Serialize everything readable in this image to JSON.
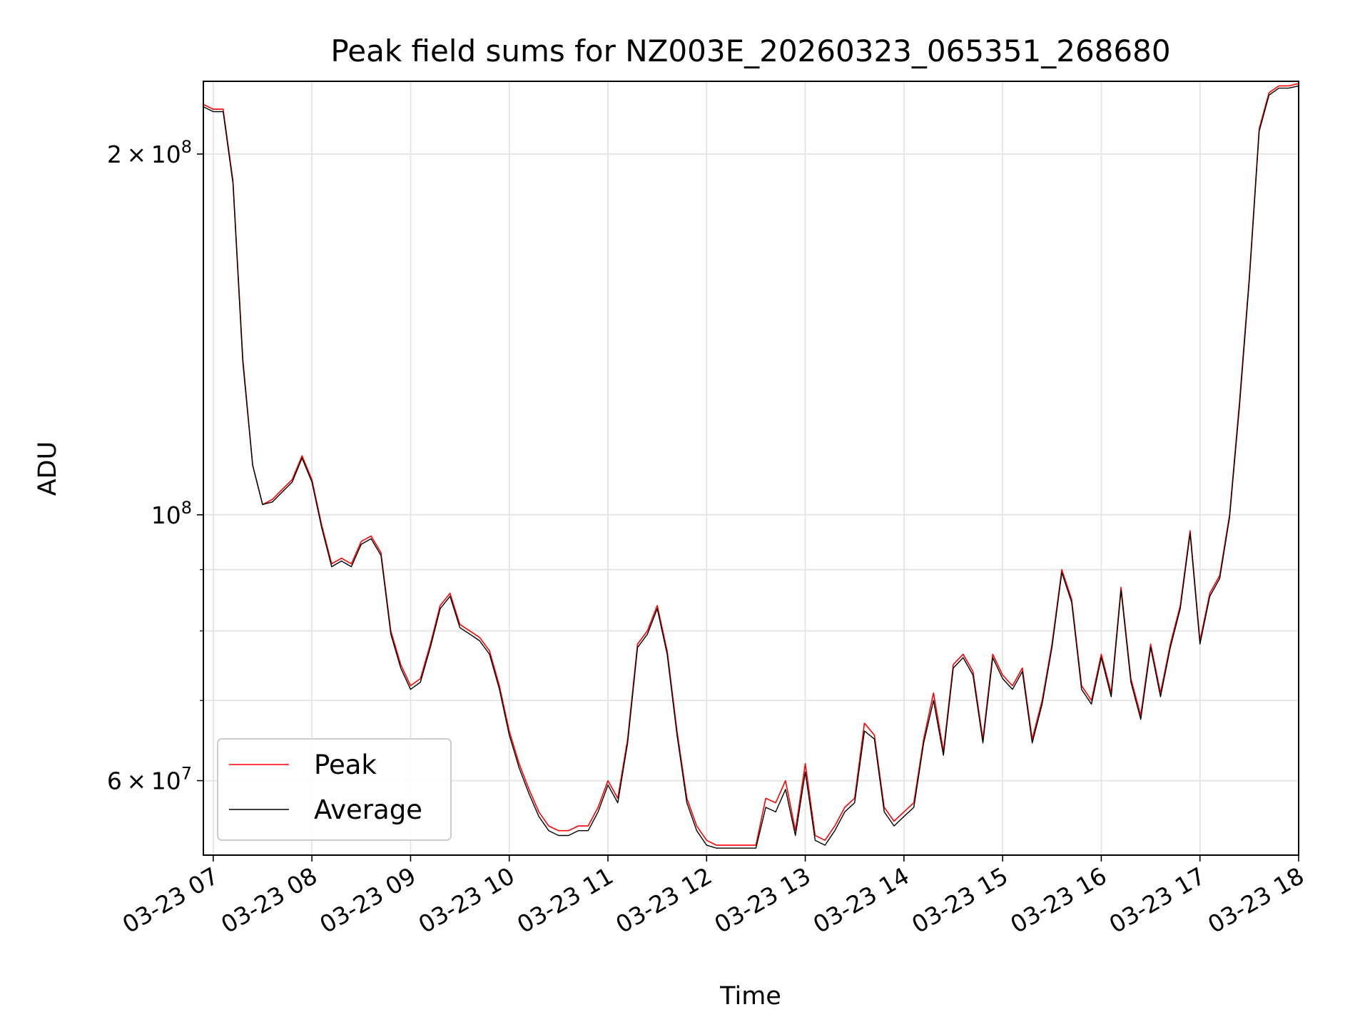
{
  "chart_data": {
    "type": "line",
    "title": "Peak field sums for NZ003E_20260323_065351_268680",
    "xlabel": "Time",
    "ylabel": "ADU",
    "y_scale": "log",
    "ylim": [
      52000000,
      230000000
    ],
    "xlim": [
      "2026-03-23 06:54",
      "2026-03-23 18:00"
    ],
    "x_tick_labels": [
      "03-23 07",
      "03-23 08",
      "03-23 09",
      "03-23 10",
      "03-23 11",
      "03-23 12",
      "03-23 13",
      "03-23 14",
      "03-23 15",
      "03-23 16",
      "03-23 17",
      "03-23 18"
    ],
    "y_major_ticks": [
      {
        "value": 60000000,
        "mantissa": "6",
        "exponent": "7"
      },
      {
        "value": 100000000,
        "mantissa": "",
        "exponent": "8"
      },
      {
        "value": 200000000,
        "mantissa": "2",
        "exponent": "8"
      }
    ],
    "y_minor_ticks": [
      70000000,
      80000000,
      90000000
    ],
    "grid": true,
    "legend_position": "lower-left",
    "series": [
      {
        "name": "Peak",
        "color": "#ff0000",
        "x": [
          "2026-03-23 06:54",
          "2026-03-23 07:00",
          "2026-03-23 07:06",
          "2026-03-23 07:12",
          "2026-03-23 07:18",
          "2026-03-23 07:24",
          "2026-03-23 07:30",
          "2026-03-23 07:36",
          "2026-03-23 07:42",
          "2026-03-23 07:48",
          "2026-03-23 07:54",
          "2026-03-23 08:00",
          "2026-03-23 08:06",
          "2026-03-23 08:12",
          "2026-03-23 08:18",
          "2026-03-23 08:24",
          "2026-03-23 08:30",
          "2026-03-23 08:36",
          "2026-03-23 08:42",
          "2026-03-23 08:48",
          "2026-03-23 08:54",
          "2026-03-23 09:00",
          "2026-03-23 09:06",
          "2026-03-23 09:12",
          "2026-03-23 09:18",
          "2026-03-23 09:24",
          "2026-03-23 09:30",
          "2026-03-23 09:36",
          "2026-03-23 09:42",
          "2026-03-23 09:48",
          "2026-03-23 09:54",
          "2026-03-23 10:00",
          "2026-03-23 10:06",
          "2026-03-23 10:12",
          "2026-03-23 10:18",
          "2026-03-23 10:24",
          "2026-03-23 10:30",
          "2026-03-23 10:36",
          "2026-03-23 10:42",
          "2026-03-23 10:48",
          "2026-03-23 10:54",
          "2026-03-23 11:00",
          "2026-03-23 11:06",
          "2026-03-23 11:12",
          "2026-03-23 11:18",
          "2026-03-23 11:24",
          "2026-03-23 11:30",
          "2026-03-23 11:36",
          "2026-03-23 11:42",
          "2026-03-23 11:48",
          "2026-03-23 11:54",
          "2026-03-23 12:00",
          "2026-03-23 12:06",
          "2026-03-23 12:12",
          "2026-03-23 12:18",
          "2026-03-23 12:24",
          "2026-03-23 12:30",
          "2026-03-23 12:36",
          "2026-03-23 12:42",
          "2026-03-23 12:48",
          "2026-03-23 12:54",
          "2026-03-23 13:00",
          "2026-03-23 13:06",
          "2026-03-23 13:12",
          "2026-03-23 13:18",
          "2026-03-23 13:24",
          "2026-03-23 13:30",
          "2026-03-23 13:36",
          "2026-03-23 13:42",
          "2026-03-23 13:48",
          "2026-03-23 13:54",
          "2026-03-23 14:00",
          "2026-03-23 14:06",
          "2026-03-23 14:12",
          "2026-03-23 14:18",
          "2026-03-23 14:24",
          "2026-03-23 14:30",
          "2026-03-23 14:36",
          "2026-03-23 14:42",
          "2026-03-23 14:48",
          "2026-03-23 14:54",
          "2026-03-23 15:00",
          "2026-03-23 15:06",
          "2026-03-23 15:12",
          "2026-03-23 15:18",
          "2026-03-23 15:24",
          "2026-03-23 15:30",
          "2026-03-23 15:36",
          "2026-03-23 15:42",
          "2026-03-23 15:48",
          "2026-03-23 15:54",
          "2026-03-23 16:00",
          "2026-03-23 16:06",
          "2026-03-23 16:12",
          "2026-03-23 16:18",
          "2026-03-23 16:24",
          "2026-03-23 16:30",
          "2026-03-23 16:36",
          "2026-03-23 16:42",
          "2026-03-23 16:48",
          "2026-03-23 16:54",
          "2026-03-23 17:00",
          "2026-03-23 17:06",
          "2026-03-23 17:12",
          "2026-03-23 17:18",
          "2026-03-23 17:24",
          "2026-03-23 17:30",
          "2026-03-23 17:36",
          "2026-03-23 17:42",
          "2026-03-23 17:48",
          "2026-03-23 17:54",
          "2026-03-23 18:00"
        ],
        "y": [
          220000000,
          218000000,
          218000000,
          190000000,
          135000000,
          110000000,
          102000000,
          103000000,
          105000000,
          107000000,
          112000000,
          107000000,
          98000000,
          91000000,
          92000000,
          91000000,
          95000000,
          96000000,
          93000000,
          80000000,
          75000000,
          72000000,
          73000000,
          78000000,
          84000000,
          86000000,
          81000000,
          80000000,
          79000000,
          77000000,
          72000000,
          66000000,
          62000000,
          59000000,
          56500000,
          55000000,
          54500000,
          54500000,
          55000000,
          55000000,
          57000000,
          60000000,
          58000000,
          65000000,
          78000000,
          80000000,
          84000000,
          77000000,
          66000000,
          58000000,
          55000000,
          53500000,
          53000000,
          53000000,
          53000000,
          53000000,
          53000000,
          58000000,
          57500000,
          60000000,
          54500000,
          62000000,
          54000000,
          53500000,
          55000000,
          57000000,
          58000000,
          67000000,
          65500000,
          57000000,
          55500000,
          56500000,
          57500000,
          65000000,
          71000000,
          63500000,
          75000000,
          76500000,
          74000000,
          65000000,
          76500000,
          73500000,
          72000000,
          74500000,
          65000000,
          70000000,
          78000000,
          90000000,
          85000000,
          72000000,
          70000000,
          76500000,
          71000000,
          87000000,
          73000000,
          68000000,
          78000000,
          71000000,
          78000000,
          84000000,
          97000000,
          78500000,
          86000000,
          89000000,
          100000000,
          124000000,
          158000000,
          210000000,
          225000000,
          228000000,
          228000000,
          229000000
        ]
      },
      {
        "name": "Average",
        "color": "#000000",
        "x": [
          "2026-03-23 06:54",
          "2026-03-23 07:00",
          "2026-03-23 07:06",
          "2026-03-23 07:12",
          "2026-03-23 07:18",
          "2026-03-23 07:24",
          "2026-03-23 07:30",
          "2026-03-23 07:36",
          "2026-03-23 07:42",
          "2026-03-23 07:48",
          "2026-03-23 07:54",
          "2026-03-23 08:00",
          "2026-03-23 08:06",
          "2026-03-23 08:12",
          "2026-03-23 08:18",
          "2026-03-23 08:24",
          "2026-03-23 08:30",
          "2026-03-23 08:36",
          "2026-03-23 08:42",
          "2026-03-23 08:48",
          "2026-03-23 08:54",
          "2026-03-23 09:00",
          "2026-03-23 09:06",
          "2026-03-23 09:12",
          "2026-03-23 09:18",
          "2026-03-23 09:24",
          "2026-03-23 09:30",
          "2026-03-23 09:36",
          "2026-03-23 09:42",
          "2026-03-23 09:48",
          "2026-03-23 09:54",
          "2026-03-23 10:00",
          "2026-03-23 10:06",
          "2026-03-23 10:12",
          "2026-03-23 10:18",
          "2026-03-23 10:24",
          "2026-03-23 10:30",
          "2026-03-23 10:36",
          "2026-03-23 10:42",
          "2026-03-23 10:48",
          "2026-03-23 10:54",
          "2026-03-23 11:00",
          "2026-03-23 11:06",
          "2026-03-23 11:12",
          "2026-03-23 11:18",
          "2026-03-23 11:24",
          "2026-03-23 11:30",
          "2026-03-23 11:36",
          "2026-03-23 11:42",
          "2026-03-23 11:48",
          "2026-03-23 11:54",
          "2026-03-23 12:00",
          "2026-03-23 12:06",
          "2026-03-23 12:12",
          "2026-03-23 12:18",
          "2026-03-23 12:24",
          "2026-03-23 12:30",
          "2026-03-23 12:36",
          "2026-03-23 12:42",
          "2026-03-23 12:48",
          "2026-03-23 12:54",
          "2026-03-23 13:00",
          "2026-03-23 13:06",
          "2026-03-23 13:12",
          "2026-03-23 13:18",
          "2026-03-23 13:24",
          "2026-03-23 13:30",
          "2026-03-23 13:36",
          "2026-03-23 13:42",
          "2026-03-23 13:48",
          "2026-03-23 13:54",
          "2026-03-23 14:00",
          "2026-03-23 14:06",
          "2026-03-23 14:12",
          "2026-03-23 14:18",
          "2026-03-23 14:24",
          "2026-03-23 14:30",
          "2026-03-23 14:36",
          "2026-03-23 14:42",
          "2026-03-23 14:48",
          "2026-03-23 14:54",
          "2026-03-23 15:00",
          "2026-03-23 15:06",
          "2026-03-23 15:12",
          "2026-03-23 15:18",
          "2026-03-23 15:24",
          "2026-03-23 15:30",
          "2026-03-23 15:36",
          "2026-03-23 15:42",
          "2026-03-23 15:48",
          "2026-03-23 15:54",
          "2026-03-23 16:00",
          "2026-03-23 16:06",
          "2026-03-23 16:12",
          "2026-03-23 16:18",
          "2026-03-23 16:24",
          "2026-03-23 16:30",
          "2026-03-23 16:36",
          "2026-03-23 16:42",
          "2026-03-23 16:48",
          "2026-03-23 16:54",
          "2026-03-23 17:00",
          "2026-03-23 17:06",
          "2026-03-23 17:12",
          "2026-03-23 17:18",
          "2026-03-23 17:24",
          "2026-03-23 17:30",
          "2026-03-23 17:36",
          "2026-03-23 17:42",
          "2026-03-23 17:48",
          "2026-03-23 17:54",
          "2026-03-23 18:00"
        ],
        "y": [
          219000000,
          217000000,
          217000000,
          189000000,
          134000000,
          110000000,
          102000000,
          102500000,
          104500000,
          106500000,
          111500000,
          106500000,
          97500000,
          90500000,
          91500000,
          90500000,
          94500000,
          95500000,
          92500000,
          79500000,
          74500000,
          71500000,
          72500000,
          77500000,
          83500000,
          85500000,
          80500000,
          79500000,
          78500000,
          76500000,
          71500000,
          65500000,
          61500000,
          58500000,
          56000000,
          54500000,
          54000000,
          54000000,
          54500000,
          54500000,
          56500000,
          59500000,
          57500000,
          64500000,
          77500000,
          79500000,
          83500000,
          76500000,
          65500000,
          57500000,
          54500000,
          53000000,
          52700000,
          52700000,
          52700000,
          52700000,
          52700000,
          57000000,
          56500000,
          59000000,
          54000000,
          61000000,
          53500000,
          53000000,
          54500000,
          56500000,
          57500000,
          66000000,
          65000000,
          56500000,
          55000000,
          56000000,
          57000000,
          64500000,
          70000000,
          63000000,
          74500000,
          76000000,
          73500000,
          64500000,
          76000000,
          73000000,
          71500000,
          74000000,
          64500000,
          69500000,
          77500000,
          89500000,
          84500000,
          71500000,
          69500000,
          76000000,
          70500000,
          86500000,
          72500000,
          67500000,
          77500000,
          70500000,
          77500000,
          83500000,
          96500000,
          78000000,
          85500000,
          88500000,
          99500000,
          123000000,
          157000000,
          209000000,
          224000000,
          227000000,
          227000000,
          228000000
        ]
      }
    ]
  }
}
